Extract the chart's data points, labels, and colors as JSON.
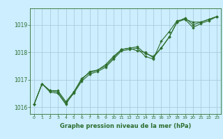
{
  "background_color": "#cceeff",
  "grid_color": "#aaccdd",
  "line_color": "#2d6e2d",
  "marker_color": "#2d6e2d",
  "text_color": "#2d6e2d",
  "xlabel": "Graphe pression niveau de la mer (hPa)",
  "xlim": [
    -0.5,
    23.5
  ],
  "ylim": [
    1015.75,
    1019.6
  ],
  "yticks": [
    1016,
    1017,
    1018,
    1019
  ],
  "xticks": [
    0,
    1,
    2,
    3,
    4,
    5,
    6,
    7,
    8,
    9,
    10,
    11,
    12,
    13,
    14,
    15,
    16,
    17,
    18,
    19,
    20,
    21,
    22,
    23
  ],
  "series": [
    [
      1016.1,
      1016.85,
      1016.6,
      1016.6,
      1016.2,
      1016.55,
      1017.05,
      1017.25,
      1017.35,
      1017.5,
      1017.8,
      1018.1,
      1018.15,
      1018.2,
      1017.95,
      1017.85,
      1018.15,
      1018.55,
      1019.1,
      1019.2,
      1019.1,
      1019.1,
      1019.2,
      1019.3
    ],
    [
      1016.1,
      1016.85,
      1016.6,
      1016.55,
      1016.15,
      1016.5,
      1016.95,
      1017.2,
      1017.3,
      1017.45,
      1017.75,
      1018.05,
      1018.1,
      1018.15,
      1017.85,
      1017.75,
      1018.4,
      1018.75,
      1019.15,
      1019.2,
      1018.9,
      1019.05,
      1019.15,
      1019.3
    ],
    [
      1016.1,
      1016.85,
      1016.55,
      1016.5,
      1016.1,
      1016.55,
      1017.0,
      1017.3,
      1017.35,
      1017.55,
      1017.85,
      1018.1,
      1018.15,
      1018.05,
      1018.0,
      1017.8,
      1018.15,
      1018.55,
      1019.1,
      1019.25,
      1019.0,
      1019.1,
      1019.2,
      1019.3
    ]
  ]
}
